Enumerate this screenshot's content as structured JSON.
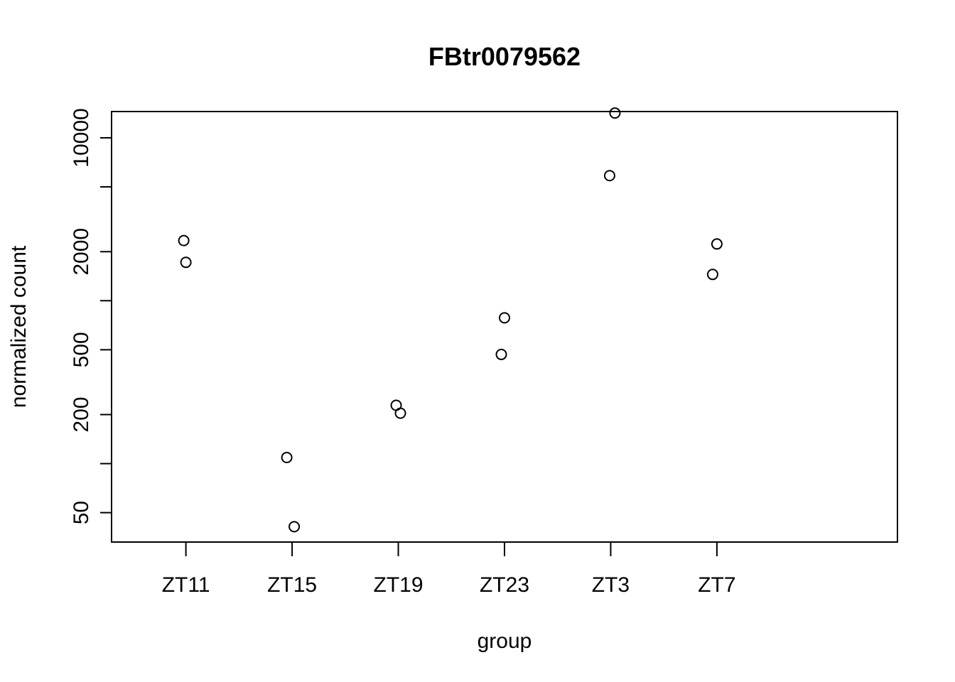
{
  "chart_data": {
    "type": "scatter",
    "title": "FBtr0079562",
    "xlabel": "group",
    "ylabel": "normalized count",
    "y_scale": "log",
    "categories": [
      "ZT11",
      "ZT15",
      "ZT19",
      "ZT23",
      "ZT3",
      "ZT7"
    ],
    "y_ticks": [
      50,
      100,
      200,
      500,
      1000,
      2000,
      5000,
      10000
    ],
    "y_tick_labels": [
      "50",
      "",
      "200",
      "500",
      "",
      "2000",
      "",
      "10000"
    ],
    "ylim": [
      33,
      14500
    ],
    "grid": false,
    "legend": "none",
    "points": [
      {
        "category": "ZT11",
        "y": 2340
      },
      {
        "category": "ZT11",
        "y": 1720
      },
      {
        "category": "ZT15",
        "y": 109
      },
      {
        "category": "ZT15",
        "y": 41
      },
      {
        "category": "ZT19",
        "y": 228
      },
      {
        "category": "ZT19",
        "y": 204
      },
      {
        "category": "ZT23",
        "y": 785
      },
      {
        "category": "ZT23",
        "y": 468
      },
      {
        "category": "ZT3",
        "y": 14200
      },
      {
        "category": "ZT3",
        "y": 5860
      },
      {
        "category": "ZT7",
        "y": 2230
      },
      {
        "category": "ZT7",
        "y": 1450
      }
    ],
    "colors": {
      "points": "#000000",
      "axes": "#000000",
      "background": "#ffffff"
    }
  }
}
